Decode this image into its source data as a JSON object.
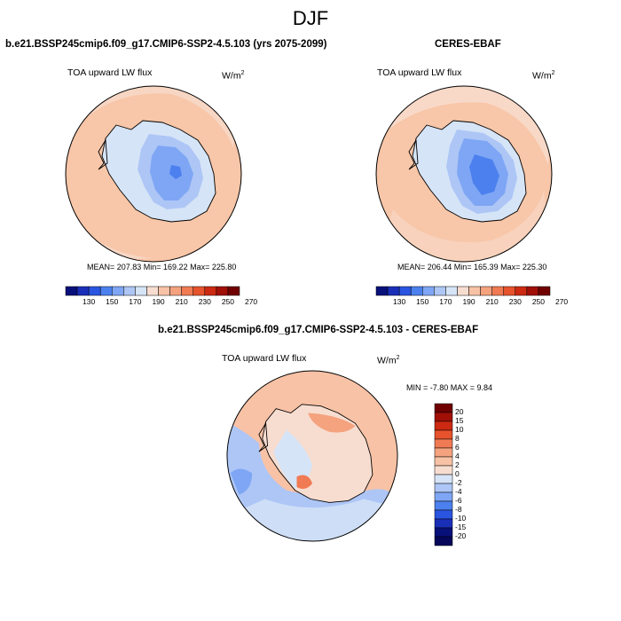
{
  "figure": {
    "season_title": "DJF"
  },
  "panels": {
    "model": {
      "title": "b.e21.BSSP245cmip6.f09_g17.CMIP6-SSP2-4.5.103 (yrs 2075-2099)",
      "variable": "TOA upward LW flux",
      "units_base": "W/m",
      "units_exp": "2",
      "stats": "MEAN= 207.83  Min= 169.22  Max= 225.80"
    },
    "obs": {
      "title": "CERES-EBAF",
      "variable": "TOA upward LW flux",
      "units_base": "W/m",
      "units_exp": "2",
      "stats": "MEAN= 206.44  Min= 165.39  Max= 225.30"
    },
    "diff": {
      "title": "b.e21.BSSP245cmip6.f09_g17.CMIP6-SSP2-4.5.103 - CERES-EBAF",
      "variable": "TOA upward LW flux",
      "units_base": "W/m",
      "units_exp": "2",
      "stats": "MIN =  -7.80 MAX =   9.84"
    }
  },
  "colorbar_abs": {
    "ticks": [
      "130",
      "150",
      "170",
      "190",
      "210",
      "230",
      "250",
      "270"
    ],
    "colors": [
      "#08107a",
      "#1a2fb8",
      "#2a55e0",
      "#4c80ee",
      "#7ea6f4",
      "#adc6f6",
      "#d6e4f7",
      "#f7ddd0",
      "#f8c2a6",
      "#f5a27f",
      "#f07a53",
      "#e6532c",
      "#cc2a12",
      "#a11007",
      "#700000"
    ]
  },
  "colorbar_diff": {
    "ticks": [
      "20",
      "15",
      "10",
      "8",
      "6",
      "4",
      "2",
      "0",
      "-2",
      "-4",
      "-6",
      "-8",
      "-10",
      "-15",
      "-20"
    ],
    "colors": [
      "#700000",
      "#a11007",
      "#cc2a12",
      "#e6532c",
      "#f07a53",
      "#f5a27f",
      "#f8c2a6",
      "#f7ddd0",
      "#d6e4f7",
      "#adc6f6",
      "#7ea6f4",
      "#4c80ee",
      "#2a55e0",
      "#1a2fb8",
      "#08107a",
      "#06065a"
    ]
  },
  "map_colors": {
    "ocean_warm": "#f8c6a8",
    "ocean_warm_light": "#f7ddd0",
    "coast_pale": "#d6e4f7",
    "ice_mid": "#adc6f6",
    "ice_blue": "#7ea6f4",
    "ice_core": "#4c80ee",
    "diff_pos": "#f5a27f",
    "diff_pos_light": "#f8c2a6",
    "diff_neutral": "#f7ddd0",
    "diff_neg_light": "#d6e4f7",
    "diff_neg": "#adc6f6",
    "diff_neg_mid": "#7ea6f4"
  }
}
